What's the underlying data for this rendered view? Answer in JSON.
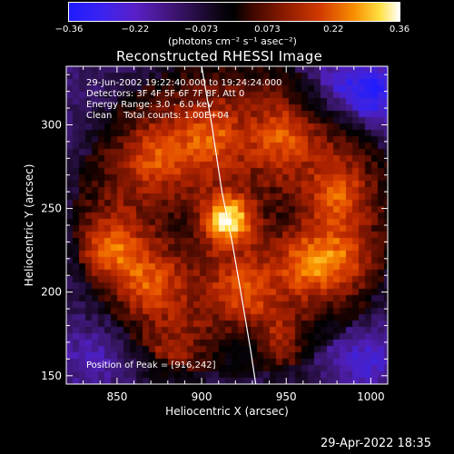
{
  "colorbar": {
    "ticks": [
      "−0.36",
      "−0.22",
      "−0.073",
      "0.073",
      "0.22",
      "0.36"
    ],
    "unit_label": "(photons cm⁻² s⁻¹ asec⁻²)"
  },
  "plot_title": "Reconstructed RHESSI Image",
  "annotation": {
    "line1": "29-Jun-2002 19:22:40.000 to 19:24:24.000",
    "line2": "Detectors: 3F 4F 5F 6F 7F 8F, Att 0",
    "line3": "Energy Range: 3.0 - 6.0 keV",
    "line4": "Clean    Total counts: 1.00E+04",
    "peak": "Position of Peak = [916,242]"
  },
  "footer_timestamp": "29-Apr-2022 18:35",
  "colors": {
    "background": "#000000",
    "text": "#ffffff",
    "limb": "#ffffff"
  },
  "chart_data": {
    "type": "heatmap",
    "title": "Reconstructed RHESSI Image",
    "xlabel": "Heliocentric X (arcsec)",
    "ylabel": "Heliocentric Y (arcsec)",
    "xlim": [
      820,
      1010
    ],
    "ylim": [
      145,
      335
    ],
    "x_ticks": [
      850,
      900,
      950,
      1000
    ],
    "y_ticks": [
      150,
      200,
      250,
      300
    ],
    "colorbar_range": [
      -0.36,
      0.36
    ],
    "colormap": "blue-purple-black-red-yellow-white",
    "peak_position": [
      916,
      242
    ],
    "limb_points": [
      [
        900,
        335
      ],
      [
        906,
        300
      ],
      [
        912,
        260
      ],
      [
        918,
        230
      ],
      [
        924,
        195
      ],
      [
        929,
        165
      ],
      [
        932,
        145
      ]
    ],
    "background_level": 0.09,
    "emission_features": [
      {
        "x": 916,
        "y": 243,
        "value": 0.36
      },
      {
        "x": 874,
        "y": 280,
        "value": 0.12
      },
      {
        "x": 905,
        "y": 292,
        "value": 0.13
      },
      {
        "x": 948,
        "y": 292,
        "value": 0.12
      },
      {
        "x": 980,
        "y": 258,
        "value": 0.12
      },
      {
        "x": 982,
        "y": 220,
        "value": 0.11
      },
      {
        "x": 845,
        "y": 225,
        "value": 0.16
      },
      {
        "x": 870,
        "y": 205,
        "value": 0.12
      },
      {
        "x": 962,
        "y": 218,
        "value": 0.13
      },
      {
        "x": 925,
        "y": 200,
        "value": 0.12
      },
      {
        "x": 880,
        "y": 160,
        "value": 0.1
      },
      {
        "x": 950,
        "y": 168,
        "value": 0.11
      },
      {
        "x": 925,
        "y": 166,
        "value": -0.09
      },
      {
        "x": 968,
        "y": 170,
        "value": -0.1
      },
      {
        "x": 888,
        "y": 240,
        "value": -0.04
      },
      {
        "x": 945,
        "y": 245,
        "value": -0.05
      },
      {
        "x": 978,
        "y": 320,
        "value": -0.14
      },
      {
        "x": 1002,
        "y": 318,
        "value": -0.2
      },
      {
        "x": 998,
        "y": 160,
        "value": -0.12
      },
      {
        "x": 835,
        "y": 160,
        "value": -0.08
      }
    ]
  }
}
